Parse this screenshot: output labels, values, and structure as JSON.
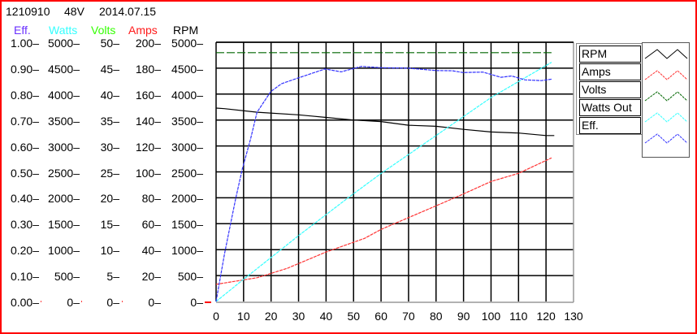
{
  "header": {
    "id": "1210910",
    "voltage": "48V",
    "date": "2014.07.15"
  },
  "axes_columns": [
    {
      "label": "Eff.",
      "color": "#6a30ff",
      "ticks": [
        "1.00",
        "0.90",
        "0.80",
        "0.70",
        "0.60",
        "0.50",
        "0.40",
        "0.30",
        "0.20",
        "0.10",
        "0.00"
      ]
    },
    {
      "label": "Watts",
      "color": "#33ffff",
      "ticks": [
        "5000",
        "4500",
        "4000",
        "3500",
        "3000",
        "2500",
        "2000",
        "1500",
        "1000",
        "500",
        "0"
      ]
    },
    {
      "label": "Volts",
      "color": "#33ff00",
      "ticks": [
        "50",
        "45",
        "40",
        "35",
        "30",
        "25",
        "20",
        "15",
        "10",
        "5",
        "0"
      ]
    },
    {
      "label": "Amps",
      "color": "#ff1a1a",
      "ticks": [
        "200",
        "180",
        "160",
        "140",
        "120",
        "100",
        "80",
        "60",
        "40",
        "20",
        "0"
      ]
    },
    {
      "label": "RPM",
      "color": "#000000",
      "ticks": [
        "5000",
        "4500",
        "4000",
        "3500",
        "3000",
        "2500",
        "2000",
        "1500",
        "1000",
        "500",
        "0"
      ]
    }
  ],
  "legend": {
    "items": [
      "RPM",
      "Amps",
      "Volts",
      "Watts Out",
      "Eff."
    ]
  },
  "chart_data": {
    "type": "line",
    "x_ticks": [
      "0",
      "10",
      "20",
      "30",
      "40",
      "50",
      "60",
      "70",
      "80",
      "90",
      "100",
      "110",
      "120",
      "130"
    ],
    "xlim": [
      0,
      130
    ],
    "grid": true,
    "legend_position": "right",
    "series": [
      {
        "name": "RPM",
        "color": "#000000",
        "axis": "RPM",
        "ylim": [
          0,
          5000
        ],
        "x": [
          0,
          3,
          15,
          30,
          40,
          50,
          60,
          70,
          80,
          90,
          100,
          110,
          120,
          123
        ],
        "y": [
          3730,
          3720,
          3650,
          3600,
          3550,
          3500,
          3470,
          3400,
          3380,
          3320,
          3270,
          3250,
          3200,
          3200
        ]
      },
      {
        "name": "Amps",
        "color": "#ff3333",
        "axis": "Amps",
        "ylim": [
          0,
          200
        ],
        "x": [
          0,
          15,
          26,
          40,
          54,
          60,
          65,
          80,
          90,
          100,
          110,
          122
        ],
        "y": [
          13.2,
          18.4,
          25.7,
          38.2,
          48.7,
          55.6,
          60.2,
          73.8,
          83,
          92.6,
          98.9,
          110.8
        ]
      },
      {
        "name": "Volts",
        "color": "#006600",
        "axis": "Volts",
        "ylim": [
          0,
          50
        ],
        "x": [
          0,
          122
        ],
        "y": [
          48,
          48
        ]
      },
      {
        "name": "Watts Out",
        "color": "#33ffff",
        "axis": "Watts",
        "ylim": [
          0,
          5000
        ],
        "x": [
          0,
          9.5,
          30,
          48,
          60,
          80,
          100,
          122
        ],
        "y": [
          0,
          407,
          1270,
          2000,
          2470,
          3200,
          3934,
          4613
        ]
      },
      {
        "name": "Eff.",
        "color": "#3333ff",
        "axis": "Eff.",
        "ylim": [
          0,
          1
        ],
        "x": [
          0,
          3.1,
          7.1,
          9.5,
          12.5,
          14.9,
          19.9,
          23.8,
          29.2,
          39.6,
          45.5,
          52.9,
          60,
          70,
          80,
          86,
          89.8,
          97,
          103.6,
          107.5,
          112.4,
          118.3,
          122.3
        ],
        "y": [
          0,
          0.186,
          0.395,
          0.51,
          0.625,
          0.73,
          0.81,
          0.84,
          0.86,
          0.897,
          0.886,
          0.907,
          0.902,
          0.9,
          0.891,
          0.89,
          0.883,
          0.885,
          0.865,
          0.87,
          0.855,
          0.852,
          0.858
        ]
      }
    ]
  }
}
